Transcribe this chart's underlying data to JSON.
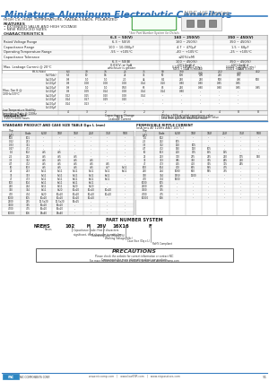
{
  "title": "Miniature Aluminum Electrolytic Capacitors",
  "series": "NRE-HS Series",
  "subtitle": "HIGH CV, HIGH TEMPERATURE, RADIAL LEADS, POLARIZED",
  "features_header": "FEATURES",
  "features": [
    "EXTENDED VALUE AND HIGH VOLTAGE",
    "NEW REDUCED SIZES"
  ],
  "char_header": "CHARACTERISTICS",
  "rohs_note": "*See Part Number System for Details",
  "bg_color": "#ffffff",
  "title_color": "#2b6cb0",
  "series_color": "#888888",
  "blue_line": "#3a7fc1",
  "part_number_header": "PART NUMBER SYSTEM",
  "part_number_str": "NREHS  102  M  20V  16X16  F",
  "precautions_header": "PRECAUTIONS",
  "footer_url": "www.niccomp.com   |   www.lowESR.com   |   www.nicpassives.com",
  "page_num": "91",
  "char_table": {
    "cols": [
      "",
      "6.3 ~ 50(V)",
      "160 ~ 250(V)",
      "350 ~ 450(V)"
    ],
    "rows": [
      [
        "Rated Voltage Range",
        "6.3 ~ 50(V)",
        "160 ~ 250(V)",
        "350 ~ 450(V)"
      ],
      [
        "Capacitance Range",
        "100 ~ 10,000μF",
        "4.7 ~ 470μF",
        "1.5 ~ 68μF"
      ],
      [
        "Operating Temperature Range",
        "-55 ~ +105°C",
        "-40 ~ +105°C",
        "-25 ~ +105°C"
      ],
      [
        "Capacitance Tolerance",
        "",
        "±20%(±M)",
        ""
      ]
    ]
  },
  "tan_voltage_cols": [
    "6.3",
    "10",
    "16",
    "25",
    "35",
    "50",
    "100",
    "160\n200",
    "250",
    "350\n400\n450"
  ],
  "tan_rows": [
    [
      "FR.V.(Vdc)",
      "6.3",
      "10",
      "16",
      "25",
      "35",
      "50",
      "100",
      "160\n200",
      "250",
      "350\n400\n450"
    ],
    [
      "S.V.(Vdc)",
      "6.3",
      "10",
      "16",
      "25",
      "35",
      "50",
      "100",
      "200",
      "250",
      "450"
    ],
    [
      "C≤100μF",
      "0.8",
      "1.0",
      "1.0",
      "2.0",
      "44",
      "8.1",
      "250",
      "250",
      "500",
      "400",
      "500"
    ],
    [
      "C≤100μF",
      "0.8",
      "0.08",
      "0.08",
      "0.08",
      "0.14",
      "0.10",
      "0.80",
      "0.80",
      "0.85",
      "0.85"
    ],
    [
      "C>100μF",
      "0.8",
      "1.0",
      "1.0",
      "0.50",
      "65",
      "85",
      "250",
      "0.80",
      "0.80",
      "0.85",
      "0.85"
    ],
    [
      "C≤100μF",
      "0.9",
      "0.09",
      "0.14",
      "0.08",
      "0.14",
      "0.14",
      "0.80",
      "--",
      "--",
      "--"
    ],
    [
      "C>100μF",
      "0.9",
      "0.09",
      "0.19",
      "0.09",
      "0.16",
      "014",
      "--",
      "--",
      "--",
      "--"
    ],
    [
      "C≤100μF",
      "0.12",
      "0.15",
      "0.20",
      "0.08",
      "0.14",
      "--",
      "--",
      "--",
      "--",
      "--"
    ],
    [
      "C>100μF",
      "0.14",
      "0.17",
      "0.29",
      "0.20",
      "--",
      "--",
      "--",
      "--",
      "--",
      "--"
    ],
    [
      "C≤100μF",
      "0.14",
      "0.13",
      "--",
      "--",
      "--",
      "--",
      "--",
      "--",
      "--",
      "--"
    ]
  ],
  "lts_vals": [
    "4",
    "3",
    "2",
    "2",
    "2",
    "2",
    "3",
    "4",
    "4",
    "8",
    "8"
  ],
  "sp_cols": [
    "Cap\n(μF)",
    "Code",
    "6.3V",
    "10V",
    "16V",
    "25V",
    "35V",
    "50V"
  ],
  "sp_data": [
    [
      "100",
      "101",
      "--",
      "--",
      "--",
      "--",
      "--",
      "--"
    ],
    [
      "0.22",
      "221",
      "--",
      "--",
      "--",
      "--",
      "--",
      "--"
    ],
    [
      "0.33",
      "331",
      "--",
      "--",
      "--",
      "--",
      "--",
      "--"
    ],
    [
      "0.47",
      "471",
      "--",
      "--",
      "--",
      "--",
      "--",
      "--"
    ],
    [
      "1.0",
      "102",
      "4x5",
      "4x5",
      "--",
      "--",
      "--",
      "--"
    ],
    [
      "2.2",
      "222",
      "4x5",
      "4x5",
      "4x5",
      "--",
      "--",
      "--"
    ],
    [
      "3.3",
      "332",
      "4x5",
      "4x5",
      "4x5",
      "4x5",
      "--",
      "--"
    ],
    [
      "4.7",
      "472",
      "4x5",
      "4x5",
      "4x5",
      "4x5",
      "4x5",
      "--"
    ],
    [
      "10",
      "103",
      "4x5",
      "4x5",
      "4x5",
      "4x5",
      "4x7",
      "5x11"
    ],
    [
      "22",
      "223",
      "5x11",
      "5x11",
      "5x11",
      "5x11",
      "5x11",
      "6x11"
    ],
    [
      "33",
      "333",
      "5x11",
      "5x11",
      "5x11",
      "5x11",
      "6x11",
      "--"
    ],
    [
      "47",
      "473",
      "5x11",
      "5x11",
      "6x11",
      "6x11",
      "6x11",
      "--"
    ],
    [
      "100",
      "104",
      "6x11",
      "6x11",
      "6x11",
      "6x11",
      "--",
      "--"
    ],
    [
      "220",
      "224",
      "8x11",
      "8x11",
      "8x20",
      "8x20",
      "--",
      "--"
    ],
    [
      "330",
      "334",
      "8x11",
      "8x20",
      "10x20",
      "10x20",
      "10x20",
      "--"
    ],
    [
      "470",
      "474",
      "8x20",
      "10x20",
      "10x20",
      "10x20",
      "10x20",
      "--"
    ],
    [
      "1000",
      "105",
      "10x20",
      "10x20",
      "10x20",
      "10x20",
      "--",
      "--"
    ],
    [
      "2200",
      "225",
      "12.5x20",
      "12.5x20",
      "16x25",
      "--",
      "--",
      "--"
    ],
    [
      "3300",
      "335",
      "16x20",
      "16x20",
      "--",
      "--",
      "--",
      "--"
    ],
    [
      "4700",
      "475",
      "16x20",
      "16x20",
      "--",
      "--",
      "--",
      "--"
    ],
    [
      "10000",
      "106",
      "18x40",
      "18x40",
      "--",
      "--",
      "--",
      "--"
    ]
  ],
  "rc_cols": [
    "Cap\n(μF)",
    "Code",
    "6.3V",
    "10V",
    "16V",
    "25V",
    "35V",
    "50V"
  ],
  "rc_data": [
    [
      "1.0",
      "102",
      "--",
      "--",
      "--",
      "--",
      "--",
      "--"
    ],
    [
      "2.2",
      "222",
      "105",
      "--",
      "--",
      "--",
      "--",
      "--"
    ],
    [
      "3.3",
      "332",
      "120",
      "105",
      "--",
      "--",
      "--",
      "--"
    ],
    [
      "4.7",
      "472",
      "140",
      "120",
      "105",
      "--",
      "--",
      "--"
    ],
    [
      "10",
      "103",
      "200",
      "175",
      "155",
      "135",
      "--",
      "--"
    ],
    [
      "22",
      "223",
      "310",
      "275",
      "245",
      "210",
      "175",
      "140"
    ],
    [
      "33",
      "333",
      "385",
      "340",
      "305",
      "265",
      "220",
      "--"
    ],
    [
      "47",
      "473",
      "465",
      "410",
      "365",
      "315",
      "265",
      "--"
    ],
    [
      "100",
      "104",
      "700",
      "625",
      "555",
      "475",
      "--",
      "--"
    ],
    [
      "220",
      "224",
      "1080",
      "960",
      "855",
      "735",
      "--",
      "--"
    ],
    [
      "330",
      "334",
      "1350",
      "1200",
      "--",
      "--",
      "--",
      "--"
    ],
    [
      "470",
      "474",
      "1600",
      "--",
      "--",
      "--",
      "--",
      "--"
    ],
    [
      "1000",
      "105",
      "--",
      "--",
      "--",
      "--",
      "--",
      "--"
    ],
    [
      "2200",
      "225",
      "--",
      "--",
      "--",
      "--",
      "--",
      "--"
    ],
    [
      "3300",
      "335",
      "--",
      "--",
      "--",
      "--",
      "--",
      "--"
    ],
    [
      "4700",
      "475",
      "--",
      "--",
      "--",
      "--",
      "--",
      "--"
    ],
    [
      "10000",
      "106",
      "--",
      "--",
      "--",
      "--",
      "--",
      "--"
    ]
  ],
  "pn_parts": [
    "NREHS",
    "102",
    "M",
    "20V",
    "16X16",
    "F"
  ],
  "pn_labels": [
    "Series",
    "Capacitance Code: First 2 characters\nsignificant, third character is multiplier",
    "Tolerance Code (M=±20%)",
    "Working Voltage (Vdc)",
    "Case Size (Dφ x L)",
    "RoHS Compliant"
  ]
}
